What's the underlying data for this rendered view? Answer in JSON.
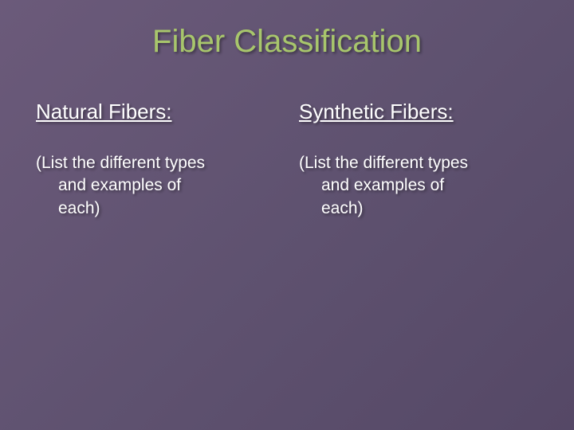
{
  "slide": {
    "title": "Fiber Classification",
    "title_color": "#a8c66c",
    "title_fontsize": 40,
    "background_gradient": [
      "#6b5a7a",
      "#5f5270",
      "#554866"
    ],
    "text_color": "#ffffff",
    "text_shadow": "2px 2px 3px rgba(0,0,0,0.4)",
    "columns": [
      {
        "heading": "Natural Fibers:",
        "body_line1": "(List the different types",
        "body_line2": "and examples of",
        "body_line3": "each)"
      },
      {
        "heading": "Synthetic Fibers:",
        "body_line1": "(List the different types",
        "body_line2": "and examples of",
        "body_line3": "each)"
      }
    ],
    "subtitle_fontsize": 26,
    "body_fontsize": 21
  }
}
